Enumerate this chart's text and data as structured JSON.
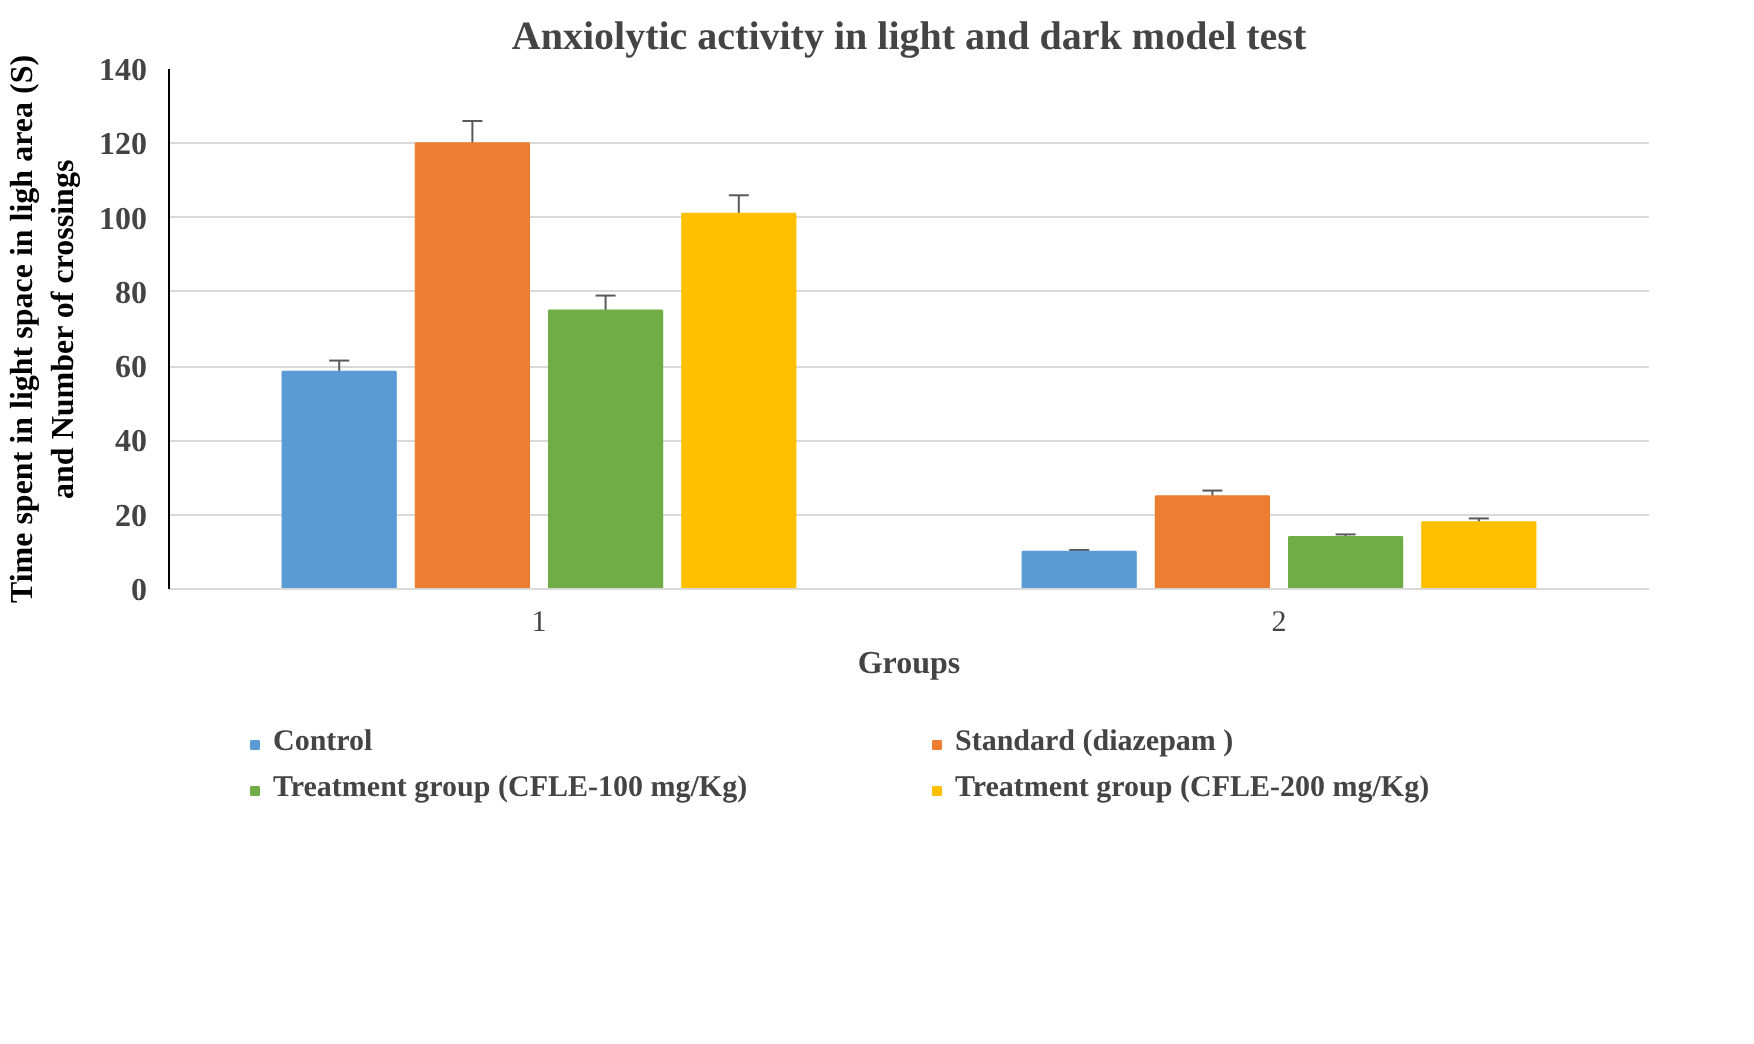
{
  "chart_data": {
    "type": "bar",
    "title": "Anxiolytic activity in light and dark model test",
    "xlabel": "Groups",
    "ylabel": "Time spent in light space in ligh area (S)\nand Number of crossings",
    "categories": [
      "1",
      "2"
    ],
    "series": [
      {
        "name": "Control",
        "color": "#5b9bd5",
        "values": [
          58.5,
          10
        ],
        "errors": [
          3,
          0.5
        ]
      },
      {
        "name": "Standard (diazepam )",
        "color": "#ed7d31",
        "values": [
          120,
          25
        ],
        "errors": [
          6,
          1.5
        ]
      },
      {
        "name": "Treatment group (CFLE-100 mg/Kg)",
        "color": "#70ad47",
        "values": [
          75,
          14
        ],
        "errors": [
          4,
          0.7
        ]
      },
      {
        "name": "Treatment group (CFLE-200 mg/Kg)",
        "color": "#ffc000",
        "values": [
          101,
          18
        ],
        "errors": [
          5,
          1
        ]
      }
    ],
    "ylim": [
      0,
      140
    ],
    "yticks": [
      0,
      20,
      40,
      60,
      80,
      100,
      120,
      140
    ],
    "grid": "y",
    "legend": "bottom"
  }
}
